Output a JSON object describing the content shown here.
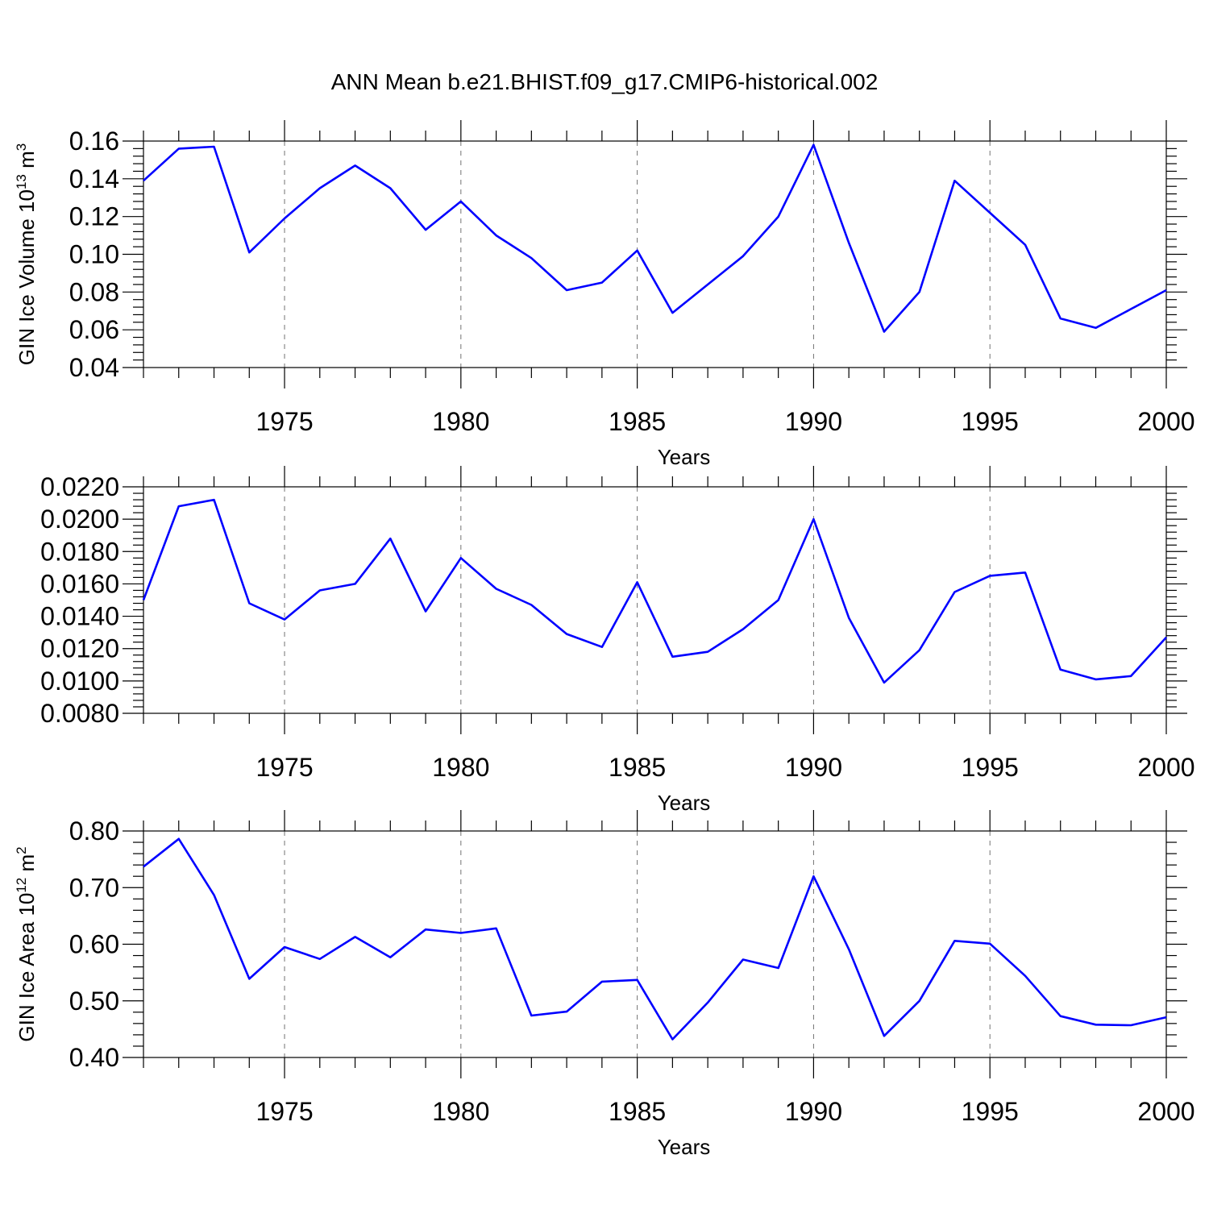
{
  "title": "ANN Mean b.e21.BHIST.f09_g17.CMIP6-historical.002",
  "colors": {
    "series": "#0000ff",
    "axes": "#000000",
    "background": "#ffffff"
  },
  "chart_data": [
    {
      "type": "line",
      "ylabel_main": "GIN Ice Volume 10",
      "ylabel_exp": "13",
      "ylabel_unit": " m",
      "ylabel_unit_exp": "3",
      "xlabel": "Years",
      "xlim": [
        1971,
        2000
      ],
      "ylim": [
        0.04,
        0.16
      ],
      "yticks": [
        "0.04",
        "0.06",
        "0.08",
        "0.10",
        "0.12",
        "0.14",
        "0.16"
      ],
      "yticks_values": [
        0.04,
        0.06,
        0.08,
        0.1,
        0.12,
        0.14,
        0.16
      ],
      "xticks": [
        "1975",
        "1980",
        "1985",
        "1990",
        "1995",
        "2000"
      ],
      "xticks_values": [
        1975,
        1980,
        1985,
        1990,
        1995,
        2000
      ],
      "grid": "dashed vertical at labeled years",
      "x": [
        1971,
        1972,
        1973,
        1974,
        1975,
        1976,
        1977,
        1978,
        1979,
        1980,
        1981,
        1982,
        1983,
        1984,
        1985,
        1986,
        1987,
        1988,
        1989,
        1990,
        1991,
        1992,
        1993,
        1994,
        1995,
        1996,
        1997,
        1998,
        1999,
        2000
      ],
      "values": [
        0.139,
        0.156,
        0.157,
        0.101,
        0.119,
        0.135,
        0.147,
        0.135,
        0.113,
        0.128,
        0.11,
        0.098,
        0.081,
        0.085,
        0.102,
        0.069,
        0.084,
        0.099,
        0.12,
        0.158,
        0.106,
        0.059,
        0.08,
        0.139,
        0.122,
        0.105,
        0.066,
        0.061,
        0.071,
        0.081
      ]
    },
    {
      "type": "line",
      "ylabel_main": "",
      "ylabel_exp": "",
      "ylabel_unit": "",
      "ylabel_unit_exp": "",
      "xlabel": "Years",
      "xlim": [
        1971,
        2000
      ],
      "ylim": [
        0.008,
        0.022
      ],
      "yticks": [
        "0.0080",
        "0.0100",
        "0.0120",
        "0.0140",
        "0.0160",
        "0.0180",
        "0.0200",
        "0.0220"
      ],
      "yticks_values": [
        0.008,
        0.01,
        0.012,
        0.014,
        0.016,
        0.018,
        0.02,
        0.022
      ],
      "xticks": [
        "1975",
        "1980",
        "1985",
        "1990",
        "1995",
        "2000"
      ],
      "xticks_values": [
        1975,
        1980,
        1985,
        1990,
        1995,
        2000
      ],
      "grid": "dashed vertical at labeled years",
      "x": [
        1971,
        1972,
        1973,
        1974,
        1975,
        1976,
        1977,
        1978,
        1979,
        1980,
        1981,
        1982,
        1983,
        1984,
        1985,
        1986,
        1987,
        1988,
        1989,
        1990,
        1991,
        1992,
        1993,
        1994,
        1995,
        1996,
        1997,
        1998,
        1999,
        2000
      ],
      "values": [
        0.015,
        0.0208,
        0.0212,
        0.0148,
        0.0138,
        0.0156,
        0.016,
        0.0188,
        0.0143,
        0.0176,
        0.0157,
        0.0147,
        0.0129,
        0.0121,
        0.0161,
        0.0115,
        0.0118,
        0.0132,
        0.015,
        0.02,
        0.0139,
        0.0099,
        0.0119,
        0.0155,
        0.0165,
        0.0167,
        0.0107,
        0.0101,
        0.0103,
        0.0127
      ]
    },
    {
      "type": "line",
      "ylabel_main": "GIN Ice Area 10",
      "ylabel_exp": "12",
      "ylabel_unit": " m",
      "ylabel_unit_exp": "2",
      "xlabel": "Years",
      "xlim": [
        1971,
        2000
      ],
      "ylim": [
        0.4,
        0.8
      ],
      "yticks": [
        "0.40",
        "0.50",
        "0.60",
        "0.70",
        "0.80"
      ],
      "yticks_values": [
        0.4,
        0.5,
        0.6,
        0.7,
        0.8
      ],
      "xticks": [
        "1975",
        "1980",
        "1985",
        "1990",
        "1995",
        "2000"
      ],
      "xticks_values": [
        1975,
        1980,
        1985,
        1990,
        1995,
        2000
      ],
      "grid": "dashed vertical at labeled years",
      "x": [
        1971,
        1972,
        1973,
        1974,
        1975,
        1976,
        1977,
        1978,
        1979,
        1980,
        1981,
        1982,
        1983,
        1984,
        1985,
        1986,
        1987,
        1988,
        1989,
        1990,
        1991,
        1992,
        1993,
        1994,
        1995,
        1996,
        1997,
        1998,
        1999,
        2000
      ],
      "values": [
        0.737,
        0.786,
        0.687,
        0.539,
        0.595,
        0.574,
        0.613,
        0.577,
        0.626,
        0.62,
        0.628,
        0.474,
        0.481,
        0.534,
        0.537,
        0.432,
        0.497,
        0.573,
        0.558,
        0.72,
        0.591,
        0.438,
        0.5,
        0.606,
        0.601,
        0.544,
        0.473,
        0.458,
        0.457,
        0.471
      ]
    }
  ]
}
